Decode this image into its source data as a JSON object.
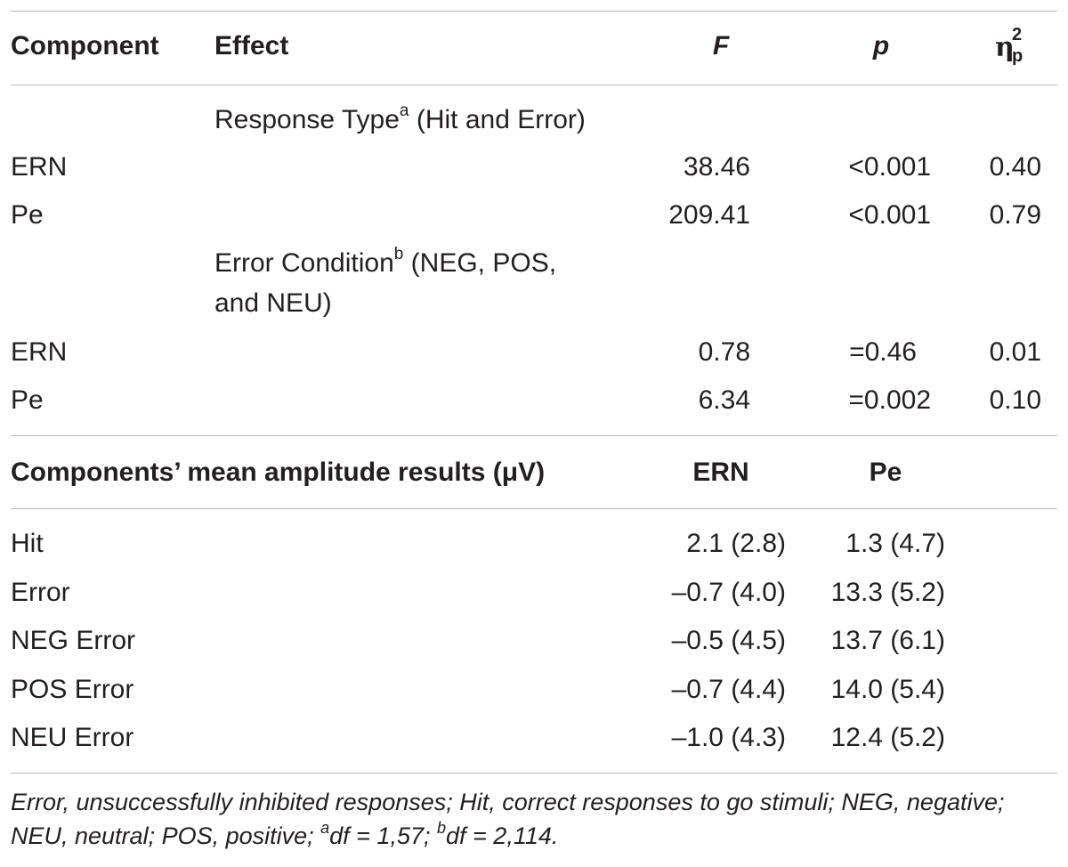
{
  "header": {
    "component": "Component",
    "effect": "Effect",
    "f": "F",
    "p": "p",
    "eta_symbol": "η",
    "eta_sup": "2",
    "eta_sub": "p"
  },
  "section_response": {
    "label": "Response Type",
    "sup": "a",
    "suffix": " (Hit and Error)",
    "rows": [
      {
        "component": "ERN",
        "f": "38.46",
        "p": "<0.001",
        "eta": "0.40"
      },
      {
        "component": "Pe",
        "f": "209.41",
        "p": "<0.001",
        "eta": "0.79"
      }
    ]
  },
  "section_error": {
    "label": "Error Condition",
    "sup": "b",
    "suffix_line1": " (NEG, POS,",
    "line2": "and NEU)",
    "rows": [
      {
        "component": "ERN",
        "f": "0.78",
        "p": "=0.46",
        "eta": "0.01"
      },
      {
        "component": "Pe",
        "f": "6.34",
        "p": "=0.002",
        "eta": "0.10"
      }
    ]
  },
  "amplitude": {
    "title": "Components’ mean amplitude results (μV)",
    "col_ern": "ERN",
    "col_pe": "Pe",
    "rows": [
      {
        "label": "Hit",
        "ern": "2.1 (2.8)",
        "pe": "1.3 (4.7)"
      },
      {
        "label": "Error",
        "ern": "–0.7 (4.0)",
        "pe": "13.3 (5.2)"
      },
      {
        "label": "NEG Error",
        "ern": "–0.5 (4.5)",
        "pe": "13.7 (6.1)"
      },
      {
        "label": "POS Error",
        "ern": "–0.7 (4.4)",
        "pe": "14.0 (5.4)"
      },
      {
        "label": "NEU Error",
        "ern": "–1.0 (4.3)",
        "pe": "12.4 (5.2)"
      }
    ]
  },
  "footnote": {
    "text": "Error, unsuccessfully inhibited responses; Hit, correct responses to go stimuli; NEG, negative; NEU, neutral; POS, positive; ",
    "sup_a": "a",
    "df_a": "df = 1,57; ",
    "sup_b": "b",
    "df_b": "df = 2,114."
  }
}
